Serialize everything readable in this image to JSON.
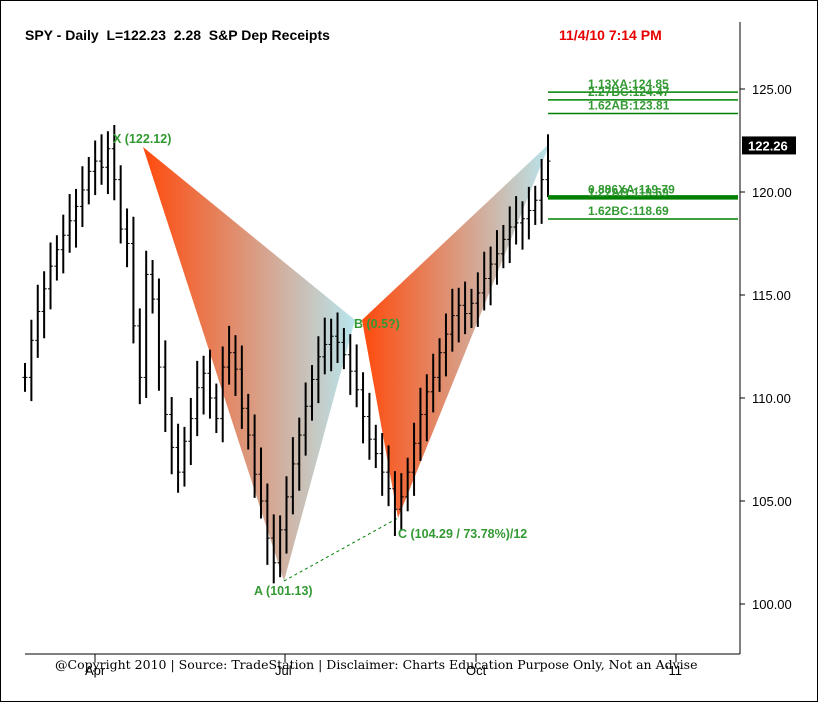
{
  "chart_data": {
    "type": "bar",
    "title": "SPY - Daily  L=122.23  2.28  S&P Dep Receipts",
    "timestamp": "11/4/10 7:14 PM",
    "copyright": "@Copyright 2010 | Source: TradeStation | Disclaimer: Charts Education Purpose Only, Not an Advise",
    "x_tick_labels": [
      "Apr",
      "Jul",
      "Oct",
      "'11"
    ],
    "y_ticks": [
      100,
      105,
      110,
      115,
      120,
      125
    ],
    "y_tick_labels": [
      "100.00",
      "105.00",
      "110.00",
      "115.00",
      "120.00",
      "125.00"
    ],
    "ylim": [
      97.5,
      128.6
    ],
    "last_price_label": "122.26",
    "pattern_points": [
      {
        "id": "X",
        "price": 122.12,
        "label": "X (122.12)"
      },
      {
        "id": "A",
        "price": 101.13,
        "label": "A (101.13)"
      },
      {
        "id": "B",
        "price": 113.4,
        "label": "B (0.5?)"
      },
      {
        "id": "C",
        "price": 104.29,
        "label": "C (104.29 / 73.78%)/12"
      },
      {
        "id": "D",
        "price": 122.26,
        "label": ""
      }
    ],
    "projection_levels": [
      {
        "price": 124.85,
        "label": "1.13XA:124.85"
      },
      {
        "price": 124.47,
        "label": "2.27BC:124.47"
      },
      {
        "price": 123.81,
        "label": "1.62AB:123.81"
      },
      {
        "price": 119.79,
        "label": "0.886XA:119.79"
      },
      {
        "price": 119.69,
        "label": "1.27AB:119.69"
      },
      {
        "price": 118.69,
        "label": "1.62BC:118.69"
      }
    ],
    "colors": {
      "pattern_strong": "#ff4a0c",
      "pattern_fade": "#b8e6ee",
      "levels": "#008000",
      "labels": "#339933",
      "bars": "#000000"
    },
    "price_series_approx": [
      111.0,
      112.8,
      114.2,
      115.3,
      116.4,
      117.2,
      117.9,
      118.6,
      119.3,
      120.1,
      121.0,
      121.5,
      121.2,
      122.1,
      120.6,
      118.2,
      117.5,
      113.5,
      111.0,
      116.0,
      114.8,
      111.5,
      109.2,
      107.6,
      106.4,
      107.9,
      109.0,
      110.5,
      111.2,
      110.0,
      109.0,
      111.5,
      112.2,
      111.4,
      109.5,
      108.2,
      106.3,
      105.0,
      103.2,
      102.0,
      103.6,
      105.2,
      106.8,
      108.2,
      109.6,
      110.9,
      112.0,
      112.6,
      113.0,
      112.7,
      112.1,
      111.3,
      110.4,
      109.1,
      108.0,
      107.3,
      106.4,
      105.6,
      104.6,
      105.2,
      106.4,
      107.8,
      109.2,
      110.3,
      111.0,
      112.2,
      113.1,
      114.0,
      114.5,
      114.1,
      114.6,
      115.1,
      115.8,
      116.5,
      117.0,
      117.7,
      118.3,
      118.5,
      118.7,
      119.1,
      119.6,
      120.6,
      121.5
    ]
  }
}
